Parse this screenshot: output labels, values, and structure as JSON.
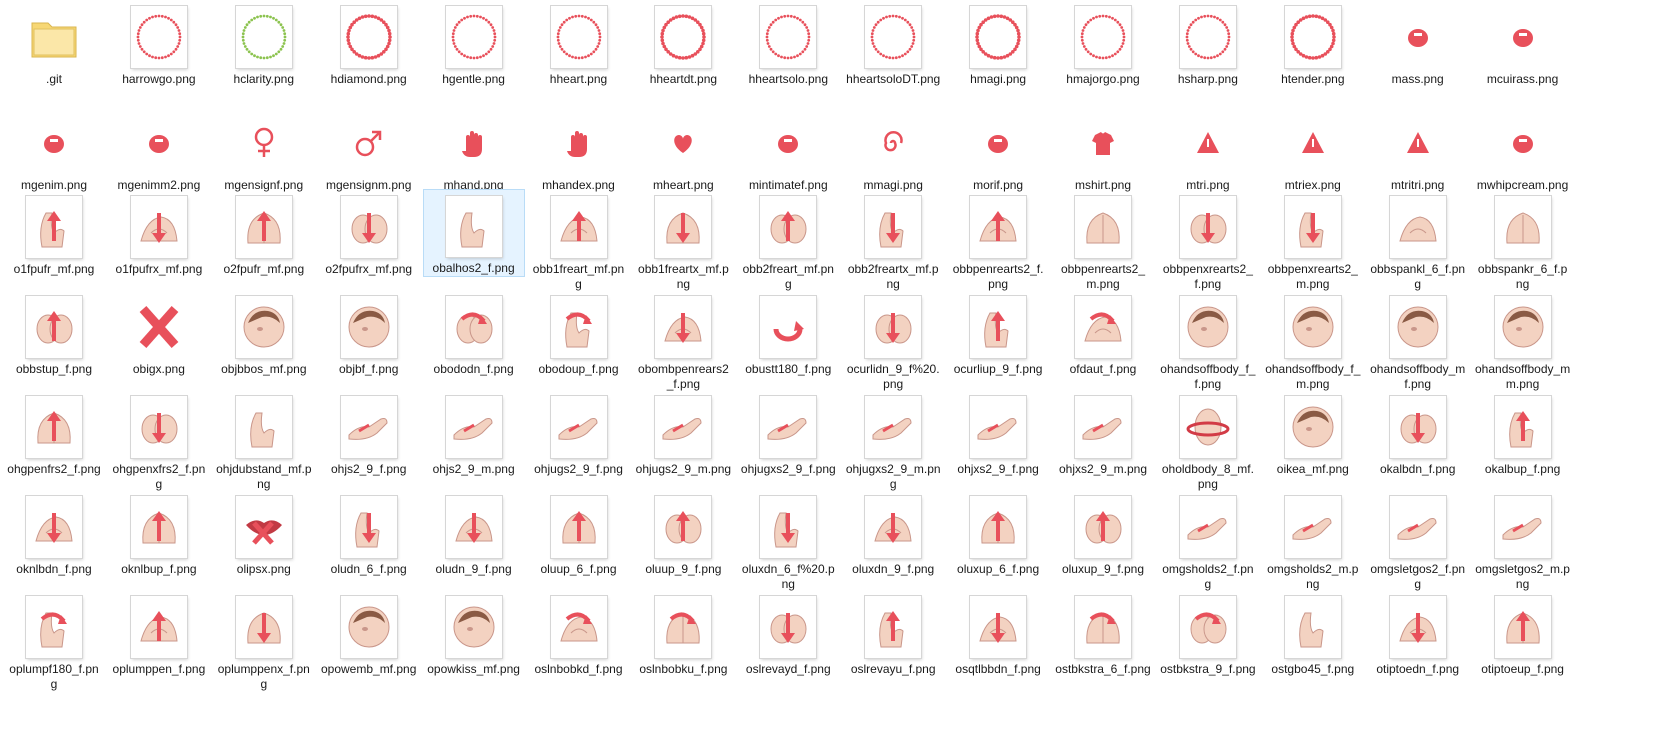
{
  "view": {
    "selected_file": "obalhos2_f.png",
    "files": [
      {
        "name": ".git",
        "icon": "folder-icon"
      },
      {
        "name": "harrowgo.png",
        "icon": "ring-icon"
      },
      {
        "name": "hclarity.png",
        "icon": "ring-icon"
      },
      {
        "name": "hdiamond.png",
        "icon": "ring-icon"
      },
      {
        "name": "hgentle.png",
        "icon": "ring-icon"
      },
      {
        "name": "hheart.png",
        "icon": "ring-icon"
      },
      {
        "name": "hheartdt.png",
        "icon": "ring-icon"
      },
      {
        "name": "hheartsolo.png",
        "icon": "ring-icon"
      },
      {
        "name": "hheartsoloDT.png",
        "icon": "ring-icon"
      },
      {
        "name": "hmagi.png",
        "icon": "ring-icon"
      },
      {
        "name": "hmajorgo.png",
        "icon": "ring-icon"
      },
      {
        "name": "hsharp.png",
        "icon": "ring-icon"
      },
      {
        "name": "htender.png",
        "icon": "ring-icon"
      },
      {
        "name": "mass.png",
        "icon": "mark-icon"
      },
      {
        "name": "mcuirass.png",
        "icon": "mark-icon"
      },
      {
        "name": "mgenim.png",
        "icon": "mark-icon"
      },
      {
        "name": "mgenimm2.png",
        "icon": "mark-icon"
      },
      {
        "name": "mgensignf.png",
        "icon": "female-sign-icon"
      },
      {
        "name": "mgensignm.png",
        "icon": "male-sign-icon"
      },
      {
        "name": "mhand.png",
        "icon": "hand-icon"
      },
      {
        "name": "mhandex.png",
        "icon": "hand-icon"
      },
      {
        "name": "mheart.png",
        "icon": "heart-icon"
      },
      {
        "name": "mintimatef.png",
        "icon": "mark-icon"
      },
      {
        "name": "mmagi.png",
        "icon": "spiral-icon"
      },
      {
        "name": "morif.png",
        "icon": "mark-icon"
      },
      {
        "name": "mshirt.png",
        "icon": "shirt-icon"
      },
      {
        "name": "mtri.png",
        "icon": "triangle-icon"
      },
      {
        "name": "mtriex.png",
        "icon": "triangle-icon"
      },
      {
        "name": "mtritri.png",
        "icon": "triangle-icon"
      },
      {
        "name": "mwhipcream.png",
        "icon": "mark-icon"
      },
      {
        "name": "o1fpufr_mf.png",
        "icon": "illustration-arrow-up-icon"
      },
      {
        "name": "o1fpufrx_mf.png",
        "icon": "illustration-arrow-down-icon"
      },
      {
        "name": "o2fpufr_mf.png",
        "icon": "illustration-arrow-up-icon"
      },
      {
        "name": "o2fpufrx_mf.png",
        "icon": "illustration-arrow-down-icon"
      },
      {
        "name": "obalhos2_f.png",
        "icon": "illustration-icon"
      },
      {
        "name": "obb1freart_mf.png",
        "icon": "illustration-arrow-up-icon"
      },
      {
        "name": "obb1freartx_mf.png",
        "icon": "illustration-arrow-down-icon"
      },
      {
        "name": "obb2freart_mf.png",
        "icon": "illustration-arrow-up-icon"
      },
      {
        "name": "obb2freartx_mf.png",
        "icon": "illustration-arrow-down-icon"
      },
      {
        "name": "obbpenrearts2_f.png",
        "icon": "illustration-arrow-up-icon"
      },
      {
        "name": "obbpenrearts2_m.png",
        "icon": "illustration-icon"
      },
      {
        "name": "obbpenxrearts2_f.png",
        "icon": "illustration-arrow-down-icon"
      },
      {
        "name": "obbpenxrearts2_m.png",
        "icon": "illustration-arrow-down-icon"
      },
      {
        "name": "obbspankl_6_f.png",
        "icon": "illustration-icon"
      },
      {
        "name": "obbspankr_6_f.png",
        "icon": "illustration-icon"
      },
      {
        "name": "obbstup_f.png",
        "icon": "illustration-arrow-up-icon"
      },
      {
        "name": "obigx.png",
        "icon": "x-mark-icon"
      },
      {
        "name": "objbbos_mf.png",
        "icon": "face-illustration-icon"
      },
      {
        "name": "objbf_f.png",
        "icon": "face-illustration-icon"
      },
      {
        "name": "obododn_f.png",
        "icon": "illustration-curve-arrow-icon"
      },
      {
        "name": "obodoup_f.png",
        "icon": "illustration-curve-arrow-icon"
      },
      {
        "name": "obombpenrears2_f.png",
        "icon": "illustration-arrow-down-icon"
      },
      {
        "name": "obustt180_f.png",
        "icon": "rotate-arrow-icon"
      },
      {
        "name": "ocurlidn_9_f%20.png",
        "icon": "illustration-arrow-down-icon"
      },
      {
        "name": "ocurliup_9_f.png",
        "icon": "illustration-arrow-up-icon"
      },
      {
        "name": "ofdaut_f.png",
        "icon": "illustration-curve-arrow-icon"
      },
      {
        "name": "ohandsoffbody_f_f.png",
        "icon": "face-illustration-icon"
      },
      {
        "name": "ohandsoffbody_f_m.png",
        "icon": "face-illustration-icon"
      },
      {
        "name": "ohandsoffbody_mf.png",
        "icon": "face-illustration-icon"
      },
      {
        "name": "ohandsoffbody_mm.png",
        "icon": "face-illustration-icon"
      },
      {
        "name": "ohgpenfrs2_f.png",
        "icon": "illustration-arrow-up-icon"
      },
      {
        "name": "ohgpenxfrs2_f.png",
        "icon": "illustration-arrow-down-icon"
      },
      {
        "name": "ohjdubstand_mf.png",
        "icon": "illustration-icon"
      },
      {
        "name": "ohjs2_9_f.png",
        "icon": "hands-illustration-icon"
      },
      {
        "name": "ohjs2_9_m.png",
        "icon": "hands-illustration-icon"
      },
      {
        "name": "ohjugs2_9_f.png",
        "icon": "hands-illustration-icon"
      },
      {
        "name": "ohjugs2_9_m.png",
        "icon": "hands-illustration-icon"
      },
      {
        "name": "ohjugxs2_9_f.png",
        "icon": "hands-illustration-icon"
      },
      {
        "name": "ohjugxs2_9_m.png",
        "icon": "hands-illustration-icon"
      },
      {
        "name": "ohjxs2_9_f.png",
        "icon": "hands-illustration-icon"
      },
      {
        "name": "ohjxs2_9_m.png",
        "icon": "hands-illustration-icon"
      },
      {
        "name": "oholdbody_8_mf.png",
        "icon": "ring-illustration-icon"
      },
      {
        "name": "oikea_mf.png",
        "icon": "face-illustration-icon"
      },
      {
        "name": "okalbdn_f.png",
        "icon": "illustration-arrow-down-icon"
      },
      {
        "name": "okalbup_f.png",
        "icon": "illustration-arrow-up-icon"
      },
      {
        "name": "oknlbdn_f.png",
        "icon": "illustration-arrow-down-icon"
      },
      {
        "name": "oknlbup_f.png",
        "icon": "illustration-arrow-up-icon"
      },
      {
        "name": "olipsx.png",
        "icon": "lips-icon"
      },
      {
        "name": "oludn_6_f.png",
        "icon": "illustration-arrow-down-icon"
      },
      {
        "name": "oludn_9_f.png",
        "icon": "illustration-arrow-down-icon"
      },
      {
        "name": "oluup_6_f.png",
        "icon": "illustration-arrow-up-icon"
      },
      {
        "name": "oluup_9_f.png",
        "icon": "illustration-arrow-up-icon"
      },
      {
        "name": "oluxdn_6_f%20.png",
        "icon": "illustration-arrow-down-icon"
      },
      {
        "name": "oluxdn_9_f.png",
        "icon": "illustration-arrow-down-icon"
      },
      {
        "name": "oluxup_6_f.png",
        "icon": "illustration-arrow-up-icon"
      },
      {
        "name": "oluxup_9_f.png",
        "icon": "illustration-arrow-up-icon"
      },
      {
        "name": "omgsholds2_f.png",
        "icon": "hands-illustration-icon"
      },
      {
        "name": "omgsholds2_m.png",
        "icon": "hands-illustration-icon"
      },
      {
        "name": "omgsletgos2_f.png",
        "icon": "hands-illustration-icon"
      },
      {
        "name": "omgsletgos2_m.png",
        "icon": "hands-illustration-icon"
      },
      {
        "name": "oplumpf180_f.png",
        "icon": "illustration-curve-arrow-icon"
      },
      {
        "name": "oplumppen_f.png",
        "icon": "illustration-arrow-up-icon"
      },
      {
        "name": "oplumppenx_f.png",
        "icon": "illustration-arrow-down-icon"
      },
      {
        "name": "opowemb_mf.png",
        "icon": "face-illustration-icon"
      },
      {
        "name": "opowkiss_mf.png",
        "icon": "face-illustration-icon"
      },
      {
        "name": "oslnbobkd_f.png",
        "icon": "illustration-curve-arrow-icon"
      },
      {
        "name": "oslnbobku_f.png",
        "icon": "illustration-curve-arrow-icon"
      },
      {
        "name": "oslrevayd_f.png",
        "icon": "illustration-arrow-down-icon"
      },
      {
        "name": "oslrevayu_f.png",
        "icon": "illustration-arrow-up-icon"
      },
      {
        "name": "osqtlbbdn_f.png",
        "icon": "illustration-arrow-down-icon"
      },
      {
        "name": "ostbkstra_6_f.png",
        "icon": "illustration-curve-arrow-icon"
      },
      {
        "name": "ostbkstra_9_f.png",
        "icon": "illustration-curve-arrow-icon"
      },
      {
        "name": "ostgbo45_f.png",
        "icon": "illustration-icon"
      },
      {
        "name": "otiptoedn_f.png",
        "icon": "illustration-arrow-down-icon"
      },
      {
        "name": "otiptoeup_f.png",
        "icon": "illustration-arrow-up-icon"
      }
    ]
  },
  "colors": {
    "accent": "#e8505b",
    "skin": "#f3d2c1",
    "skin_line": "#c9968a",
    "green": "#8cc34f",
    "folder": "#f7d774",
    "selection": "#e5f3ff"
  }
}
